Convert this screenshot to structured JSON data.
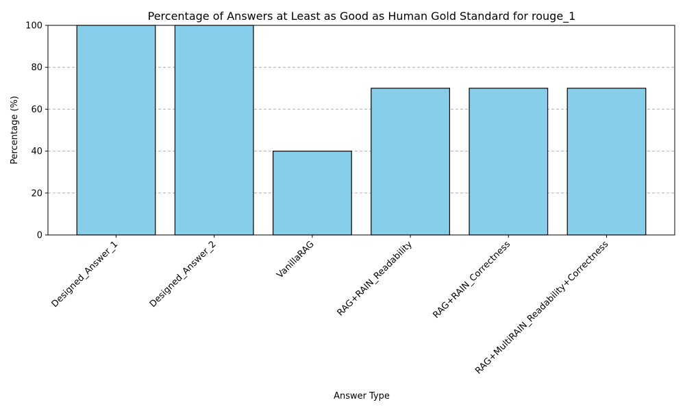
{
  "chart_data": {
    "type": "bar",
    "title": "Percentage of Answers at Least as Good as Human Gold Standard for rouge_1",
    "xlabel": "Answer Type",
    "ylabel": "Percentage (%)",
    "categories": [
      "Designed_Answer_1",
      "Designed_Answer_2",
      "VanillaRAG",
      "RAG+RAIN_Readability",
      "RAG+RAIN_Correctness",
      "RAG+MultiRAIN_Readability+Correctness"
    ],
    "values": [
      100,
      100,
      40,
      70,
      70,
      70
    ],
    "ylim": [
      0,
      100
    ],
    "yticks": [
      0,
      20,
      40,
      60,
      80,
      100
    ],
    "grid": "y-dashed",
    "bar_color": "#87CEEB",
    "edge_color": "#000000"
  }
}
